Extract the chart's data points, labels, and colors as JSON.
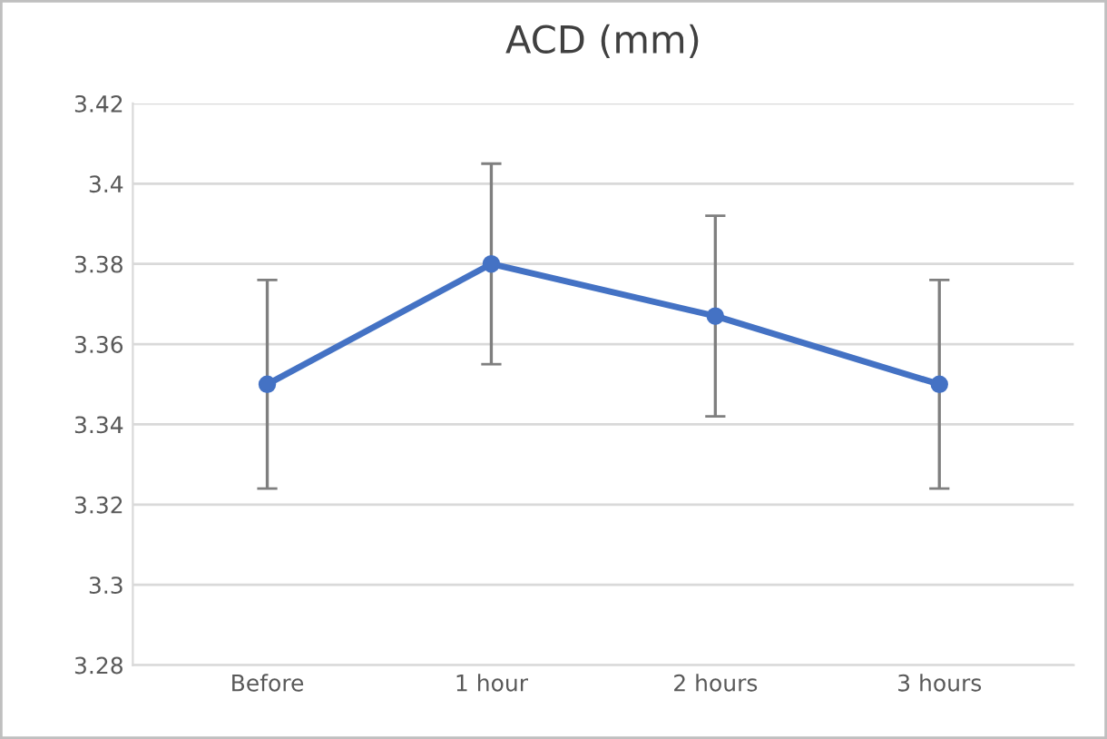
{
  "chart_data": {
    "type": "line",
    "title": "ACD (mm)",
    "categories": [
      "Before",
      "1 hour",
      "2 hours",
      "3 hours"
    ],
    "series": [
      {
        "color": "#4472c4",
        "values": [
          3.35,
          3.38,
          3.367,
          3.35
        ],
        "errors": [
          0.026,
          0.025,
          0.025,
          0.026
        ]
      }
    ],
    "ylim": [
      3.28,
      3.42
    ],
    "yticks": [
      3.28,
      3.3,
      3.32,
      3.34,
      3.36,
      3.38,
      3.4,
      3.42
    ],
    "grid": "y",
    "marker": "circle",
    "line_style": "solid",
    "legend": false
  }
}
